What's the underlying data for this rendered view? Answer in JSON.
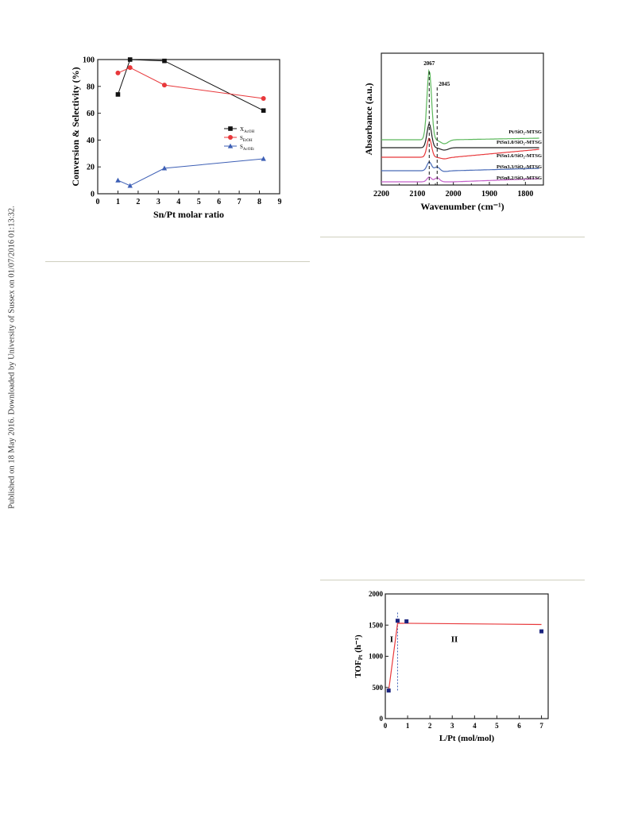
{
  "sidebar_note": "Published on 18 May 2016. Downloaded by University of Sussex on 01/07/2016 01:13:32.",
  "chart_data": [
    {
      "type": "line",
      "xlabel": "Sn/Pt molar ratio",
      "ylabel": "Conversion & Selectivity (%)",
      "xlim": [
        0,
        9
      ],
      "ylim": [
        0,
        100
      ],
      "xticks": [
        "0",
        "1",
        "2",
        "3",
        "4",
        "5",
        "6",
        "7",
        "8",
        "9"
      ],
      "yticks": [
        "0",
        "20",
        "40",
        "60",
        "80",
        "100"
      ],
      "legend_position": "center-right",
      "series": [
        {
          "name": "X",
          "sub": "AcOH",
          "color": "#111111",
          "marker": "square",
          "x": [
            1.0,
            1.6,
            3.3,
            8.2
          ],
          "y": [
            74,
            100,
            99,
            62
          ]
        },
        {
          "name": "S",
          "sub": "EtOH",
          "color": "#e8383b",
          "marker": "circle",
          "x": [
            1.0,
            1.6,
            3.3,
            8.2
          ],
          "y": [
            90,
            94,
            81,
            71
          ]
        },
        {
          "name": "S",
          "sub": "AcOEt",
          "color": "#3d5fb5",
          "marker": "triangle",
          "x": [
            1.0,
            1.6,
            3.3,
            8.2
          ],
          "y": [
            10,
            6,
            19,
            26
          ]
        }
      ]
    },
    {
      "type": "line",
      "xlabel": "Wavenumber (cm⁻¹)",
      "ylabel": "Absorbance  (a.u.)",
      "xlim": [
        2200,
        1750
      ],
      "xticks": [
        "2200",
        "2100",
        "2000",
        "1900",
        "1800"
      ],
      "peak_labels": [
        "2067",
        "2045"
      ],
      "peak_positions": [
        2067,
        2045
      ],
      "series": [
        {
          "name": "Pt/SiO₂-MTSG",
          "color": "#5cb85c"
        },
        {
          "name": "PtSn1.0/SiO₂-MTSG",
          "color": "#222222"
        },
        {
          "name": "PtSn1.6/SiO₂-MTSG",
          "color": "#e8383b"
        },
        {
          "name": "PtSn3.3/SiO₂-MTSG",
          "color": "#4a6cb8"
        },
        {
          "name": "PtSn8.2/SiO₂-MTSG",
          "color": "#c561c9"
        }
      ]
    },
    {
      "type": "scatter",
      "xlabel": "L/Pt (mol/mol)",
      "ylabel": "TOF",
      "ylabel_sub": "Pt",
      "ylabel_unit": "(h⁻¹)",
      "xlim": [
        0,
        7.3
      ],
      "ylim": [
        0,
        2000
      ],
      "xticks": [
        "0",
        "1",
        "2",
        "3",
        "4",
        "5",
        "6",
        "7"
      ],
      "yticks": [
        "0",
        "500",
        "1000",
        "1500",
        "2000"
      ],
      "region_labels": [
        "I",
        "II"
      ],
      "points": {
        "x": [
          0.15,
          0.55,
          0.95,
          7.0
        ],
        "y": [
          450,
          1570,
          1560,
          1400
        ]
      },
      "fit_line": {
        "x": [
          0.15,
          0.55,
          7.0
        ],
        "y": [
          450,
          1530,
          1510
        ]
      },
      "divider_x": 0.55,
      "color": "#1a237e",
      "fit_color": "#e8383b"
    }
  ]
}
